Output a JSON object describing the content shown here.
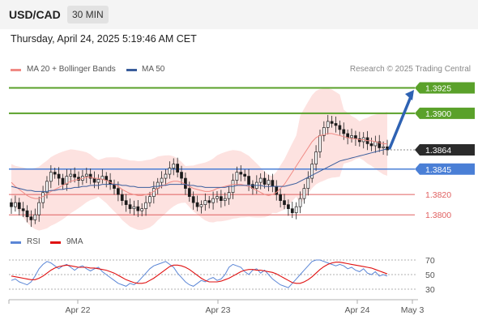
{
  "header": {
    "symbol": "USD/CAD",
    "interval": "30 MIN",
    "datetime": "Thursday, April 24, 2025 5:19:46 AM CET"
  },
  "legend": {
    "ma20": "MA 20 + Bollinger Bands",
    "ma50": "MA 50",
    "ma20_color": "#f08a84",
    "ma50_color": "#3a5d9c",
    "copyright": "Research © 2025 Trading Central"
  },
  "rsi_legend": {
    "rsi": "RSI",
    "ma9": "9MA",
    "rsi_color": "#5b86d6",
    "ma9_color": "#e01010"
  },
  "colors": {
    "resistance": "#5aa12a",
    "support_blue": "#4a7fd6",
    "support_red": "#e06060",
    "current": "#2b2b2b",
    "arrow": "#2e62b3",
    "bullish": "#ffffff",
    "bearish": "#1a1a1a",
    "band_fill": "#fde2e0"
  },
  "chart_data": [
    {
      "type": "candlestick",
      "title": "USD/CAD",
      "ylim": [
        1.3785,
        1.3935
      ],
      "x_ticks": [
        "Apr 22",
        "Apr 23",
        "Apr 24",
        "May 3"
      ],
      "levels": [
        {
          "value": 1.3925,
          "label": "1.3925",
          "kind": "resistance"
        },
        {
          "value": 1.39,
          "label": "1.3900",
          "kind": "resistance"
        },
        {
          "value": 1.3864,
          "label": "1.3864",
          "kind": "current"
        },
        {
          "value": 1.3845,
          "label": "1.3845",
          "kind": "support"
        },
        {
          "value": 1.382,
          "label": "1.3820",
          "kind": "support-minor"
        },
        {
          "value": 1.38,
          "label": "1.3800",
          "kind": "support-minor"
        }
      ],
      "close": [
        1.3808,
        1.3812,
        1.3806,
        1.3804,
        1.3798,
        1.3795,
        1.38,
        1.3812,
        1.3822,
        1.3833,
        1.3842,
        1.384,
        1.3836,
        1.383,
        1.3838,
        1.384,
        1.3837,
        1.3834,
        1.3838,
        1.384,
        1.3836,
        1.3832,
        1.3835,
        1.3838,
        1.3834,
        1.383,
        1.3826,
        1.382,
        1.3814,
        1.381,
        1.3806,
        1.3808,
        1.3804,
        1.3806,
        1.3812,
        1.3818,
        1.3826,
        1.3832,
        1.3836,
        1.384,
        1.3846,
        1.385,
        1.3842,
        1.3836,
        1.3826,
        1.3818,
        1.3812,
        1.3808,
        1.381,
        1.3814,
        1.3812,
        1.3816,
        1.3818,
        1.3814,
        1.3816,
        1.3822,
        1.3834,
        1.3842,
        1.384,
        1.3838,
        1.383,
        1.3826,
        1.3832,
        1.3836,
        1.383,
        1.3834,
        1.3828,
        1.382,
        1.3814,
        1.381,
        1.3806,
        1.3802,
        1.3808,
        1.3816,
        1.3826,
        1.3836,
        1.385,
        1.3862,
        1.3878,
        1.3886,
        1.3892,
        1.389,
        1.3888,
        1.3884,
        1.388,
        1.3876,
        1.3878,
        1.3875,
        1.3872,
        1.3876,
        1.387,
        1.3868,
        1.3872,
        1.3866,
        1.3867,
        1.3864
      ],
      "ma20": [
        1.3832,
        1.3828,
        1.3825,
        1.3822,
        1.3819,
        1.3817,
        1.3816,
        1.3816,
        1.3818,
        1.382,
        1.3823,
        1.3825,
        1.3827,
        1.3829,
        1.3831,
        1.3833,
        1.3834,
        1.3835,
        1.3836,
        1.3837,
        1.3837,
        1.3836,
        1.3836,
        1.3835,
        1.3834,
        1.3832,
        1.383,
        1.3828,
        1.3825,
        1.3823,
        1.3821,
        1.382,
        1.3819,
        1.3819,
        1.382,
        1.3821,
        1.3823,
        1.3826,
        1.3828,
        1.383,
        1.3832,
        1.3833,
        1.3833,
        1.3832,
        1.383,
        1.3828,
        1.3826,
        1.3825,
        1.3824,
        1.3823,
        1.3823,
        1.3824,
        1.3826,
        1.3827,
        1.3828,
        1.3829,
        1.383,
        1.383,
        1.383,
        1.3829,
        1.3828,
        1.3826,
        1.3824,
        1.3822,
        1.382,
        1.3819,
        1.382,
        1.3822,
        1.3826,
        1.383,
        1.3836,
        1.3842,
        1.3848,
        1.3854,
        1.386,
        1.3866,
        1.3872,
        1.3876,
        1.3878,
        1.3879,
        1.388,
        1.388,
        1.3879,
        1.3878,
        1.3877,
        1.3876,
        1.3875,
        1.3875,
        1.3874,
        1.3874,
        1.3873,
        1.3873,
        1.3872,
        1.3871,
        1.387,
        1.387
      ],
      "ma50": [
        1.3828,
        1.3827,
        1.3826,
        1.3825,
        1.3824,
        1.3824,
        1.3823,
        1.3823,
        1.3823,
        1.3823,
        1.3824,
        1.3824,
        1.3825,
        1.3825,
        1.3826,
        1.3826,
        1.3827,
        1.3827,
        1.3828,
        1.3828,
        1.3829,
        1.3829,
        1.3829,
        1.383,
        1.383,
        1.383,
        1.383,
        1.383,
        1.3829,
        1.3829,
        1.3828,
        1.3828,
        1.3827,
        1.3827,
        1.3827,
        1.3827,
        1.3828,
        1.3828,
        1.3829,
        1.3829,
        1.383,
        1.383,
        1.383,
        1.383,
        1.383,
        1.3829,
        1.3829,
        1.3828,
        1.3828,
        1.3827,
        1.3827,
        1.3827,
        1.3827,
        1.3827,
        1.3827,
        1.3828,
        1.3828,
        1.3829,
        1.3829,
        1.3829,
        1.3829,
        1.3829,
        1.3829,
        1.3829,
        1.3828,
        1.3828,
        1.3828,
        1.3828,
        1.3828,
        1.3828,
        1.3829,
        1.383,
        1.3831,
        1.3833,
        1.3835,
        1.3837,
        1.3839,
        1.3841,
        1.3843,
        1.3845,
        1.3847,
        1.3849,
        1.3851,
        1.3853,
        1.3854,
        1.3855,
        1.3856,
        1.3857,
        1.3858,
        1.3859,
        1.386,
        1.3861,
        1.3862,
        1.3863,
        1.3864,
        1.3865
      ]
    },
    {
      "type": "line",
      "title": "RSI",
      "ylim": [
        20,
        80
      ],
      "y_ticks": [
        70,
        50,
        30
      ],
      "rsi": [
        42,
        44,
        40,
        38,
        36,
        40,
        48,
        58,
        64,
        68,
        66,
        62,
        58,
        62,
        64,
        60,
        56,
        60,
        62,
        58,
        55,
        58,
        60,
        54,
        50,
        46,
        42,
        38,
        36,
        34,
        38,
        36,
        40,
        46,
        52,
        58,
        62,
        64,
        66,
        68,
        64,
        60,
        52,
        46,
        40,
        36,
        34,
        38,
        42,
        40,
        44,
        46,
        42,
        44,
        50,
        60,
        64,
        62,
        60,
        54,
        50,
        56,
        58,
        52,
        56,
        50,
        44,
        40,
        36,
        34,
        32,
        38,
        44,
        50,
        56,
        62,
        68,
        70,
        70,
        68,
        66,
        64,
        62,
        64,
        62,
        58,
        60,
        56,
        54,
        58,
        52,
        50,
        54,
        48,
        50,
        48
      ],
      "ma9": [
        48,
        47,
        46,
        45,
        44,
        43,
        43,
        45,
        48,
        52,
        56,
        59,
        61,
        62,
        63,
        62,
        61,
        60,
        60,
        60,
        59,
        59,
        58,
        57,
        56,
        54,
        52,
        49,
        46,
        43,
        41,
        39,
        38,
        38,
        39,
        42,
        45,
        49,
        53,
        57,
        61,
        63,
        63,
        62,
        60,
        57,
        53,
        49,
        45,
        42,
        40,
        40,
        40,
        41,
        43,
        45,
        48,
        51,
        54,
        56,
        57,
        57,
        56,
        56,
        55,
        54,
        53,
        51,
        48,
        45,
        42,
        39,
        38,
        38,
        40,
        43,
        47,
        52,
        57,
        61,
        64,
        66,
        67,
        67,
        66,
        65,
        64,
        63,
        62,
        61,
        60,
        59,
        57,
        55,
        53,
        51
      ]
    }
  ]
}
